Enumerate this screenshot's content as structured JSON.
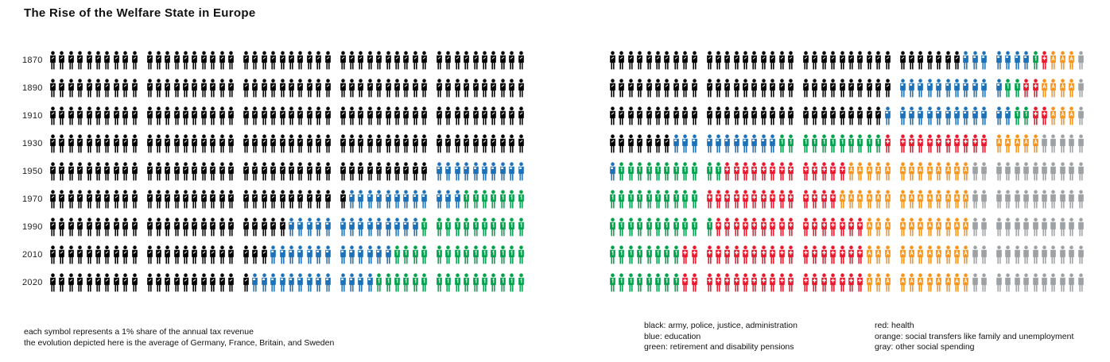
{
  "title": "The Rise of the Welfare State in Europe",
  "footnotes": [
    "each symbol represents a  1% share of the annual tax revenue",
    "the evolution depicted here is the average of Germany, France, Britain, and Sweden"
  ],
  "legend": {
    "col1": [
      {
        "key": "black",
        "label": "black: army, police, justice, administration"
      },
      {
        "key": "blue",
        "label": "blue: education"
      },
      {
        "key": "green",
        "label": "green: retirement and disability pensions"
      }
    ],
    "col2": [
      {
        "key": "red",
        "label": "red: health"
      },
      {
        "key": "orange",
        "label": "orange: social transfers like family and unemployment"
      },
      {
        "key": "gray",
        "label": "gray: other social spending"
      }
    ]
  },
  "chart_data": {
    "type": "pictogram",
    "unit": "1 symbol = 1% of annual tax revenue",
    "symbols_per_row": 100,
    "group_size": 10,
    "groups_per_half": 5,
    "category_order": [
      "black",
      "blue",
      "green",
      "red",
      "orange",
      "gray"
    ],
    "categories": {
      "black": {
        "label": "army, police, justice, administration",
        "color": "#000000"
      },
      "blue": {
        "label": "education",
        "color": "#1d71b8"
      },
      "green": {
        "label": "retirement and disability pensions",
        "color": "#00a14b"
      },
      "red": {
        "label": "health",
        "color": "#e8192c"
      },
      "orange": {
        "label": "social transfers like family and unemployment",
        "color": "#f7941d"
      },
      "gray": {
        "label": "other social spending",
        "color": "#9fa2a5"
      }
    },
    "rows": [
      {
        "year": "1870",
        "values": {
          "black": 87,
          "blue": 7,
          "green": 1,
          "red": 1,
          "orange": 3,
          "gray": 1
        }
      },
      {
        "year": "1890",
        "values": {
          "black": 80,
          "blue": 11,
          "green": 2,
          "red": 2,
          "orange": 4,
          "gray": 1
        }
      },
      {
        "year": "1910",
        "values": {
          "black": 79,
          "blue": 13,
          "green": 2,
          "red": 2,
          "orange": 3,
          "gray": 1
        }
      },
      {
        "year": "1930",
        "values": {
          "black": 57,
          "blue": 11,
          "green": 11,
          "red": 11,
          "orange": 5,
          "gray": 5
        }
      },
      {
        "year": "1950",
        "values": {
          "black": 40,
          "blue": 11,
          "green": 11,
          "red": 13,
          "orange": 13,
          "gray": 12
        }
      },
      {
        "year": "1970",
        "values": {
          "black": 31,
          "blue": 12,
          "green": 17,
          "red": 14,
          "orange": 14,
          "gray": 12
        }
      },
      {
        "year": "1990",
        "values": {
          "black": 25,
          "blue": 14,
          "green": 22,
          "red": 16,
          "orange": 11,
          "gray": 12
        }
      },
      {
        "year": "2010",
        "values": {
          "black": 23,
          "blue": 13,
          "green": 22,
          "red": 19,
          "orange": 11,
          "gray": 12
        }
      },
      {
        "year": "2020",
        "values": {
          "black": 21,
          "blue": 13,
          "green": 24,
          "red": 19,
          "orange": 11,
          "gray": 12
        }
      }
    ]
  }
}
